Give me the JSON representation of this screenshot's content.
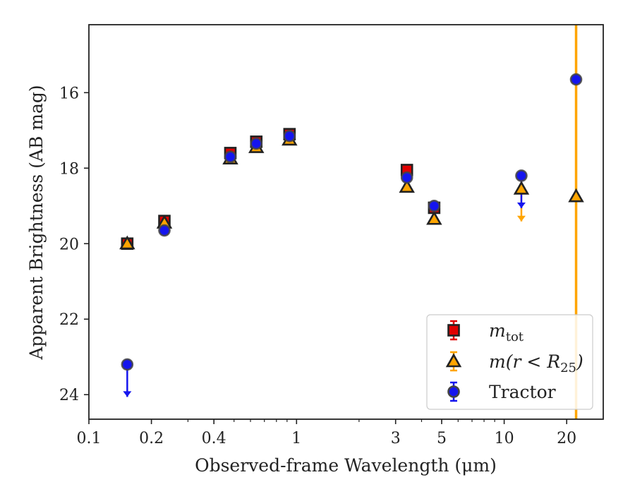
{
  "chart_data": {
    "type": "scatter",
    "title": "",
    "xlabel": "Observed-frame Wavelength (μm)",
    "ylabel": "Apparent Brightness (AB mag)",
    "xscale": "log",
    "xlim": [
      0.1,
      30
    ],
    "ylim": [
      24.65,
      14.2
    ],
    "y_inverted": true,
    "x_ticks": [
      {
        "value": 0.1,
        "label": "0.1"
      },
      {
        "value": 0.2,
        "label": "0.2"
      },
      {
        "value": 0.4,
        "label": "0.4"
      },
      {
        "value": 1,
        "label": "1"
      },
      {
        "value": 3,
        "label": "3"
      },
      {
        "value": 5,
        "label": "5"
      },
      {
        "value": 10,
        "label": "10"
      },
      {
        "value": 20,
        "label": "20"
      }
    ],
    "y_ticks": [
      {
        "value": 16,
        "label": "16"
      },
      {
        "value": 18,
        "label": "18"
      },
      {
        "value": 20,
        "label": "20"
      },
      {
        "value": 22,
        "label": "22"
      },
      {
        "value": 24,
        "label": "24"
      }
    ],
    "legend_position": "lower-right",
    "series": [
      {
        "name": "m_tot",
        "color": "#e00000",
        "marker": "square",
        "points": [
          {
            "x": 0.153,
            "y": 20.0
          },
          {
            "x": 0.231,
            "y": 19.4
          },
          {
            "x": 0.48,
            "y": 17.6
          },
          {
            "x": 0.64,
            "y": 17.3
          },
          {
            "x": 0.925,
            "y": 17.1
          },
          {
            "x": 3.4,
            "y": 18.05
          },
          {
            "x": 4.6,
            "y": 19.05
          }
        ]
      },
      {
        "name": "m(r < R25)",
        "color": "#ffa500",
        "marker": "triangle",
        "points": [
          {
            "x": 0.153,
            "y": 20.0
          },
          {
            "x": 0.231,
            "y": 19.45
          },
          {
            "x": 0.48,
            "y": 17.75
          },
          {
            "x": 0.64,
            "y": 17.45
          },
          {
            "x": 0.925,
            "y": 17.25
          },
          {
            "x": 3.4,
            "y": 18.5
          },
          {
            "x": 4.6,
            "y": 19.35
          },
          {
            "x": 12.1,
            "y": 18.55,
            "upper_limit": true
          },
          {
            "x": 22.2,
            "y": 18.75,
            "vertical_band": true
          }
        ]
      },
      {
        "name": "Tractor",
        "color": "#1515ee",
        "marker": "circle",
        "points": [
          {
            "x": 0.153,
            "y": 23.2,
            "upper_limit": true
          },
          {
            "x": 0.231,
            "y": 19.65
          },
          {
            "x": 0.48,
            "y": 17.7
          },
          {
            "x": 0.64,
            "y": 17.35
          },
          {
            "x": 0.925,
            "y": 17.15
          },
          {
            "x": 3.4,
            "y": 18.25
          },
          {
            "x": 4.6,
            "y": 19.0
          },
          {
            "x": 12.1,
            "y": 18.2,
            "upper_limit": true
          },
          {
            "x": 22.2,
            "y": 15.65
          }
        ]
      }
    ],
    "legend": [
      {
        "series": "m_tot",
        "label_main": "m",
        "label_sub": "tot",
        "label_post": ""
      },
      {
        "series": "m(r < R25)",
        "label_main": "m(r < R",
        "label_sub": "25",
        "label_post": ")"
      },
      {
        "series": "Tractor",
        "label_main": "Tractor",
        "label_sub": "",
        "label_post": ""
      }
    ]
  }
}
